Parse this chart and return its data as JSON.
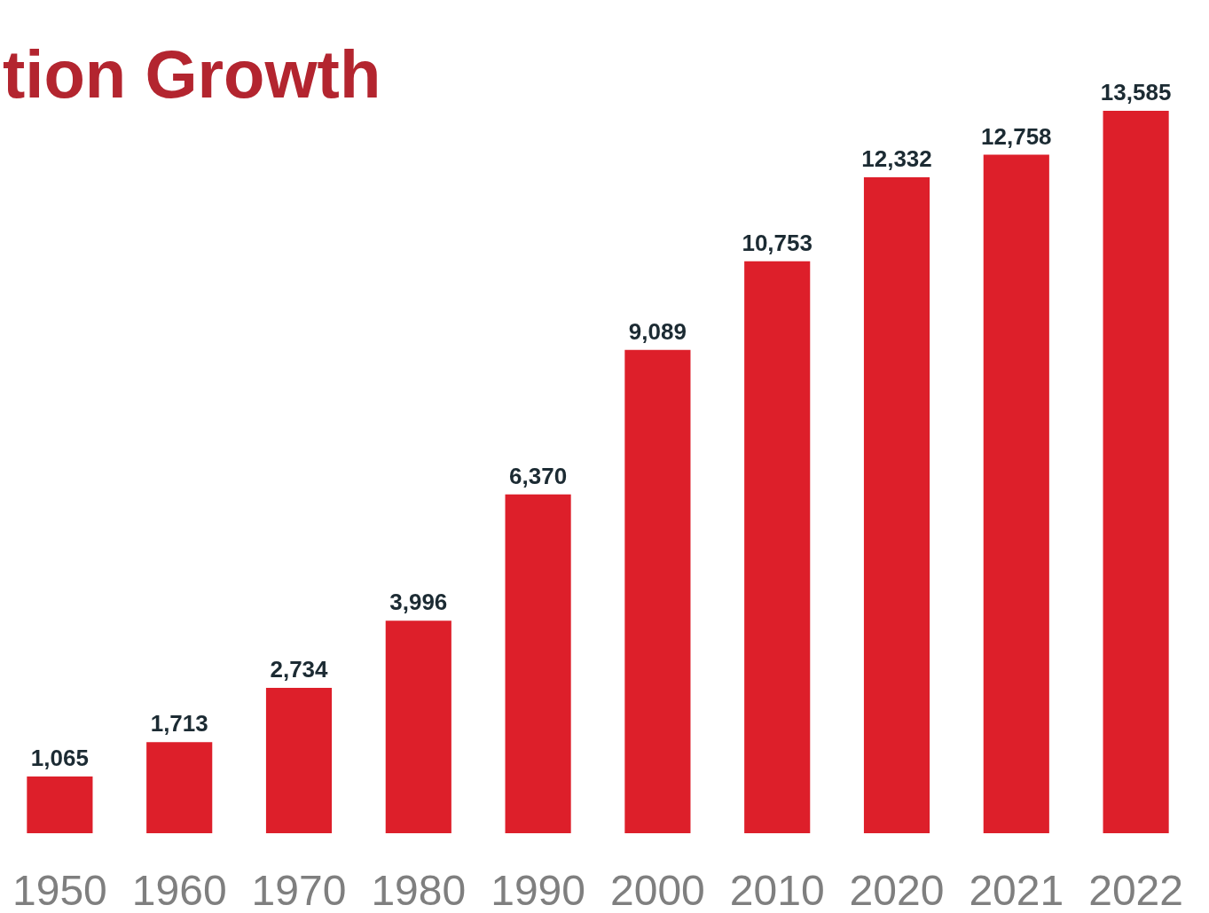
{
  "chart_data": {
    "type": "bar",
    "title": "tion Growth",
    "categories": [
      "1950",
      "1960",
      "1970",
      "1980",
      "1990",
      "2000",
      "2010",
      "2020",
      "2021",
      "2022"
    ],
    "values": [
      1065,
      1713,
      2734,
      3996,
      6370,
      9089,
      10753,
      12332,
      12758,
      13585
    ],
    "value_labels": [
      "1,065",
      "1,713",
      "2,734",
      "3,996",
      "6,370",
      "9,089",
      "10,753",
      "12,332",
      "12,758",
      "13,585"
    ],
    "color": "#dd1f2a"
  }
}
